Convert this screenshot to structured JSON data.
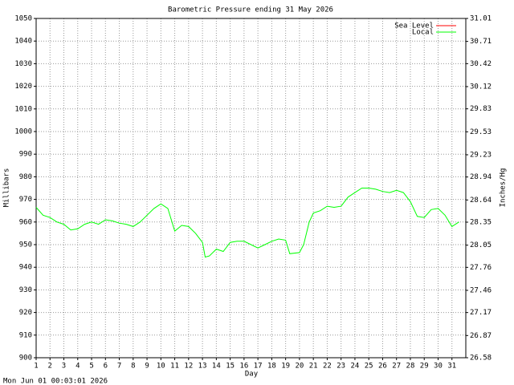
{
  "chart_data": {
    "type": "line",
    "title": "Barometric Pressure ending 31 May 2026",
    "xlabel": "Day",
    "ylabel": "Millibars",
    "y2label": "Inches/Hg",
    "footer": "Mon Jun 01 00:03:01 2026",
    "xlim": [
      1,
      32
    ],
    "xticks": [
      1,
      2,
      3,
      4,
      5,
      6,
      7,
      8,
      9,
      10,
      11,
      12,
      13,
      14,
      15,
      16,
      17,
      18,
      19,
      20,
      21,
      22,
      23,
      24,
      25,
      26,
      27,
      28,
      29,
      30,
      31
    ],
    "ylim": [
      900,
      1050
    ],
    "yticks": [
      900,
      910,
      920,
      930,
      940,
      950,
      960,
      970,
      980,
      990,
      1000,
      1010,
      1020,
      1030,
      1040,
      1050
    ],
    "y2lim": [
      26.58,
      31.01
    ],
    "y2ticks": [
      26.58,
      26.87,
      27.17,
      27.46,
      27.76,
      28.05,
      28.35,
      28.64,
      28.94,
      29.23,
      29.53,
      29.83,
      30.12,
      30.42,
      30.71,
      31.01
    ],
    "grid": true,
    "legend": "upper right",
    "x": [
      1,
      1.5,
      2,
      2.5,
      3,
      3.5,
      4,
      4.5,
      5,
      5.5,
      6,
      6.5,
      7,
      7.5,
      8,
      8.5,
      9,
      9.5,
      10,
      10.5,
      11,
      11.5,
      12,
      12.5,
      13,
      13.2,
      13.5,
      14,
      14.5,
      15,
      15.5,
      16,
      16.5,
      17,
      17.5,
      18,
      18.5,
      19,
      19.3,
      20,
      20.3,
      20.7,
      21,
      21.5,
      22,
      22.5,
      23,
      23.5,
      24,
      24.5,
      25,
      25.5,
      26,
      26.5,
      27,
      27.5,
      28,
      28.5,
      29,
      29.5,
      30,
      30.5,
      31,
      31.5
    ],
    "series": [
      {
        "name": "Sea Level",
        "color": "#ff0000",
        "values": [
          null,
          null,
          null,
          null,
          null,
          null,
          null,
          null,
          null,
          null,
          null,
          null,
          null,
          null,
          null,
          null,
          null,
          null,
          null,
          null,
          null,
          null,
          null,
          null,
          null,
          null,
          null,
          null,
          null,
          null,
          null,
          null,
          null,
          null,
          null,
          null,
          null,
          null,
          null,
          null,
          null,
          null,
          null,
          null,
          null,
          null,
          null,
          null,
          null,
          null,
          null,
          null,
          null,
          null,
          null,
          null,
          null,
          null,
          null,
          null,
          null,
          null,
          null,
          null
        ]
      },
      {
        "name": "Local",
        "color": "#00ff00",
        "values": [
          966.5,
          963,
          962,
          960,
          959,
          956.5,
          957,
          959,
          960,
          959,
          961,
          960.5,
          959.5,
          959,
          958,
          960,
          963,
          966,
          968,
          966,
          956,
          958.5,
          958,
          955,
          951,
          944.5,
          945,
          948,
          947,
          951,
          951.5,
          951.5,
          950,
          948.5,
          950,
          951.5,
          952.5,
          952,
          946,
          946.5,
          950,
          960,
          964,
          965,
          967,
          966.5,
          967,
          971,
          973,
          975,
          975,
          974.5,
          973.5,
          973,
          974,
          973,
          969,
          962.5,
          962,
          965.5,
          966,
          963,
          958,
          960
        ]
      }
    ]
  }
}
